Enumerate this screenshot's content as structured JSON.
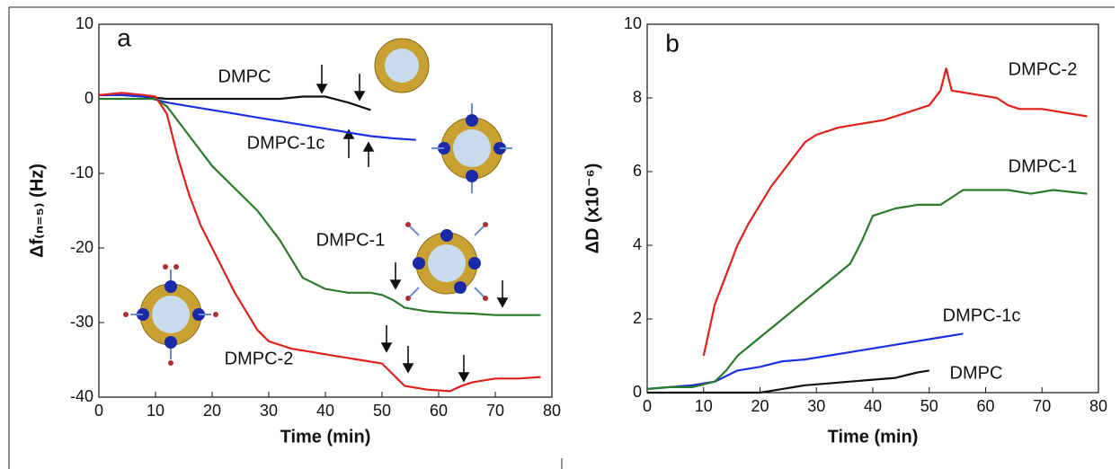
{
  "chart_data": [
    {
      "type": "line",
      "panel_label": "a",
      "xlabel": "Time (min)",
      "ylabel": "Δf₍ₙ₌₅₎ (Hz)",
      "xlim": [
        0,
        80
      ],
      "ylim": [
        -40,
        10
      ],
      "xticks": [
        0,
        10,
        20,
        30,
        40,
        50,
        60,
        70,
        80
      ],
      "yticks": [
        -40,
        -30,
        -20,
        -10,
        0,
        10
      ],
      "series": [
        {
          "name": "DMPC",
          "color": "#111111",
          "x": [
            0,
            4,
            8,
            12,
            16,
            20,
            24,
            28,
            32,
            36,
            40,
            44,
            48
          ],
          "values": [
            0.5,
            0.5,
            0.3,
            0,
            0,
            0,
            0,
            0,
            0,
            0.3,
            0.3,
            -0.5,
            -1.5
          ]
        },
        {
          "name": "DMPC-1c",
          "color": "#1a2fe0",
          "x": [
            0,
            4,
            8,
            12,
            16,
            20,
            24,
            28,
            32,
            36,
            40,
            44,
            48,
            52,
            56
          ],
          "values": [
            0.5,
            0.5,
            0.3,
            -0.5,
            -1,
            -1.5,
            -2,
            -2.5,
            -3,
            -3.5,
            -4,
            -4.5,
            -5,
            -5.3,
            -5.5
          ]
        },
        {
          "name": "DMPC-1",
          "color": "#2a7a2a",
          "x": [
            0,
            4,
            8,
            10,
            12,
            16,
            20,
            24,
            28,
            32,
            36,
            40,
            44,
            48,
            50,
            52,
            54,
            58,
            62,
            66,
            70,
            74,
            78
          ],
          "values": [
            0,
            0,
            0,
            0,
            -1,
            -5,
            -9,
            -12,
            -15,
            -19,
            -24,
            -25.5,
            -26,
            -26,
            -26.3,
            -27,
            -28,
            -28.5,
            -28.7,
            -28.8,
            -29,
            -29,
            -29
          ]
        },
        {
          "name": "DMPC-2",
          "color": "#e0201a",
          "x": [
            0,
            4,
            8,
            10,
            12,
            14,
            16,
            18,
            20,
            22,
            24,
            26,
            28,
            30,
            34,
            38,
            42,
            46,
            50,
            52,
            54,
            58,
            62,
            64,
            66,
            70,
            74,
            78
          ],
          "values": [
            0.5,
            0.8,
            0.5,
            0.3,
            -2,
            -8,
            -13,
            -17,
            -20,
            -23,
            -26,
            -28.5,
            -31,
            -32.5,
            -33.5,
            -34,
            -34.5,
            -35,
            -35.5,
            -37,
            -38.5,
            -39,
            -39.2,
            -38.5,
            -38,
            -37.5,
            -37.5,
            -37.3
          ]
        }
      ]
    },
    {
      "type": "line",
      "panel_label": "b",
      "xlabel": "Time (min)",
      "ylabel": "ΔD (x10⁻⁶)",
      "xlim": [
        0,
        80
      ],
      "ylim": [
        0,
        10
      ],
      "xticks": [
        0,
        10,
        20,
        30,
        40,
        50,
        60,
        70,
        80
      ],
      "yticks": [
        0,
        2,
        4,
        6,
        8,
        10
      ],
      "series": [
        {
          "name": "DMPC",
          "color": "#111111",
          "x": [
            0,
            10,
            14,
            20,
            24,
            28,
            32,
            36,
            40,
            44,
            48,
            50
          ],
          "values": [
            0,
            0,
            0,
            0,
            0.1,
            0.2,
            0.25,
            0.3,
            0.35,
            0.4,
            0.55,
            0.6
          ]
        },
        {
          "name": "DMPC-1c",
          "color": "#1a2fe0",
          "x": [
            0,
            4,
            8,
            12,
            16,
            20,
            24,
            28,
            32,
            36,
            40,
            44,
            48,
            52,
            56
          ],
          "values": [
            0.1,
            0.15,
            0.2,
            0.3,
            0.6,
            0.7,
            0.85,
            0.9,
            1,
            1.1,
            1.2,
            1.3,
            1.4,
            1.5,
            1.6
          ]
        },
        {
          "name": "DMPC-1",
          "color": "#2a7a2a",
          "x": [
            0,
            4,
            8,
            12,
            14,
            16,
            20,
            24,
            28,
            32,
            36,
            38,
            40,
            44,
            48,
            52,
            56,
            60,
            64,
            68,
            72,
            78
          ],
          "values": [
            0.1,
            0.15,
            0.15,
            0.3,
            0.6,
            1,
            1.5,
            2,
            2.5,
            3,
            3.5,
            4.1,
            4.8,
            5,
            5.1,
            5.1,
            5.5,
            5.5,
            5.5,
            5.4,
            5.5,
            5.4
          ]
        },
        {
          "name": "DMPC-2",
          "color": "#e0201a",
          "x": [
            10,
            12,
            14,
            16,
            18,
            20,
            22,
            24,
            26,
            28,
            30,
            34,
            38,
            42,
            46,
            50,
            52,
            53,
            54,
            58,
            62,
            64,
            66,
            70,
            74,
            78
          ],
          "values": [
            1,
            2.4,
            3.2,
            4,
            4.6,
            5.1,
            5.6,
            6,
            6.4,
            6.8,
            7,
            7.2,
            7.3,
            7.4,
            7.6,
            7.8,
            8.2,
            8.8,
            8.2,
            8.1,
            8,
            7.8,
            7.7,
            7.7,
            7.6,
            7.5
          ]
        }
      ]
    }
  ]
}
